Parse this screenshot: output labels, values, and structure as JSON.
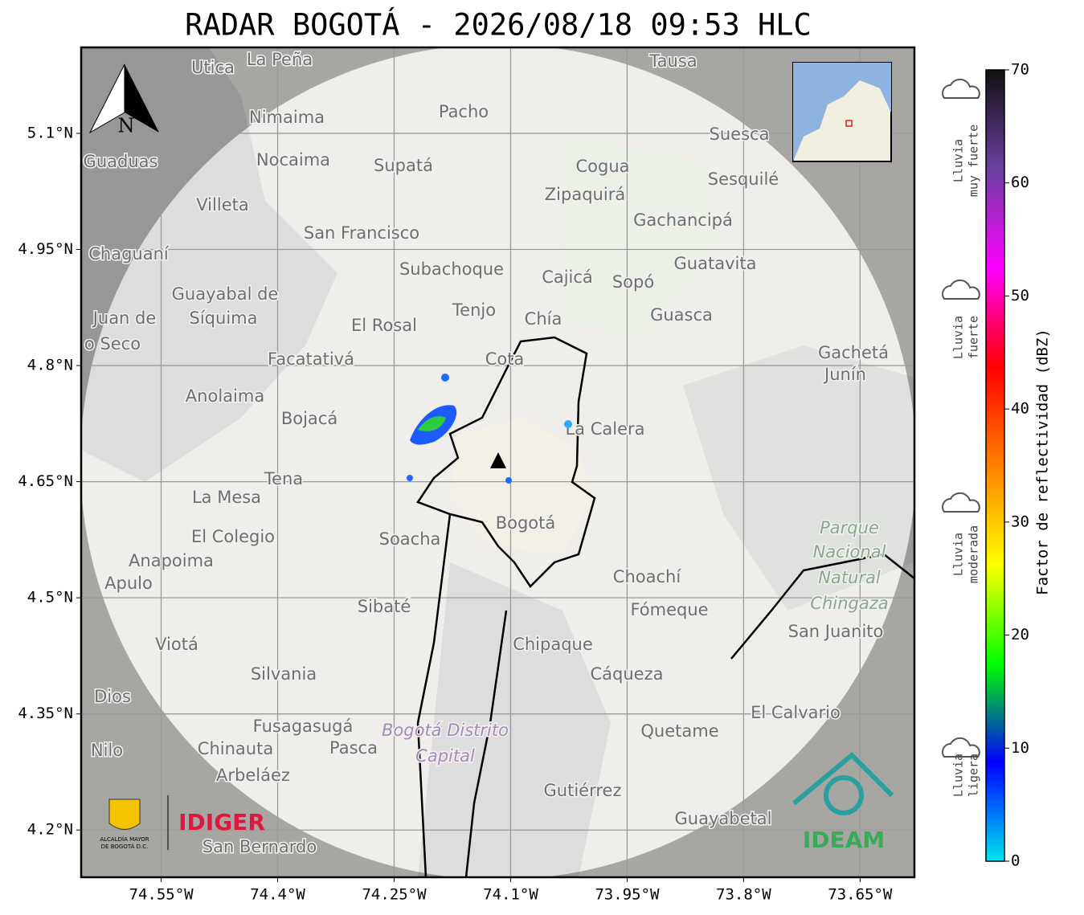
{
  "title": "RADAR BOGOTÁ - 2026/08/18 09:53 HLC",
  "map": {
    "xlim": [
      -74.653,
      -73.58
    ],
    "ylim": [
      4.139,
      5.211
    ],
    "xticks": [
      {
        "value": -74.55,
        "label": "74.55°W"
      },
      {
        "value": -74.4,
        "label": "74.4°W"
      },
      {
        "value": -74.25,
        "label": "74.25°W"
      },
      {
        "value": -74.1,
        "label": "74.1°W"
      },
      {
        "value": -73.95,
        "label": "73.95°W"
      },
      {
        "value": -73.8,
        "label": "73.8°W"
      },
      {
        "value": -73.65,
        "label": "73.65°W"
      }
    ],
    "yticks": [
      {
        "value": 4.2,
        "label": "4.2°N"
      },
      {
        "value": 4.35,
        "label": "4.35°N"
      },
      {
        "value": 4.5,
        "label": "4.5°N"
      },
      {
        "value": 4.65,
        "label": "4.65°N"
      },
      {
        "value": 4.8,
        "label": "4.8°N"
      },
      {
        "value": 4.95,
        "label": "4.95°N"
      },
      {
        "value": 5.1,
        "label": "5.1°N"
      }
    ],
    "grid": true,
    "north_arrow": "N",
    "places": [
      "La Peña",
      "Utica",
      "Tausa",
      "Pacho",
      "Nimaima",
      "Suesca",
      "Guaduas",
      "Nocaima",
      "Supatá",
      "Cogua",
      "Sesquilé",
      "Zipaquirá",
      "Villeta",
      "Gachancipá",
      "San Francisco",
      "Chaguaní",
      "Guatavita",
      "Subachoque",
      "Cajicá",
      "Sopó",
      "Guayabal de",
      "Síquima",
      "Tenjo",
      "Chía",
      "Guasca",
      "Juan de",
      "o Seco",
      "El Rosal",
      "Gachetá",
      "Junín",
      "Facatativá",
      "Cota",
      "Anolaima",
      "Bojacá",
      "La Calera",
      "Tena",
      "La Mesa",
      "Bogotá",
      "Parque",
      "Nacional",
      "Natural",
      "Chingaza",
      "El Colegio",
      "Soacha",
      "Anapoima",
      "Apulo",
      "Choachí",
      "Sibaté",
      "Fómeque",
      "San Juanito",
      "Chipaque",
      "Viotá",
      "Silvania",
      "Cáqueza",
      "Dios",
      "El Calvario",
      "Fusagasugá",
      "Bogotá Distrito",
      "Capital",
      "Quetame",
      "Nilo",
      "Chinauta",
      "Pasca",
      "Arbeláez",
      "Gutiérrez",
      "Guayabetal",
      "San Bernardo"
    ],
    "logos": {
      "alcaldia": [
        "ALCALDÍA MAYOR",
        "DE BOGOTÁ D.C."
      ],
      "idiger": "IDIGER",
      "ideam": "IDEAM"
    }
  },
  "colorbar": {
    "label": "Factor de reflectividad (dBZ)",
    "lim": [
      0,
      70
    ],
    "ticks": [
      0,
      10,
      20,
      30,
      40,
      50,
      60,
      70
    ],
    "colors": [
      "#00e5ee",
      "#0000ff",
      "#00ff00",
      "#ffff00",
      "#ff8000",
      "#ff0000",
      "#ff00ff",
      "#6a3fa0",
      "#111111"
    ],
    "legend": [
      {
        "lines": [
          "Lluvia",
          "muy fuerte"
        ]
      },
      {
        "lines": [
          "Lluvia",
          "fuerte"
        ]
      },
      {
        "lines": [
          "Lluvia",
          "moderada"
        ]
      },
      {
        "lines": [
          "Lluvia",
          "ligera"
        ]
      }
    ]
  }
}
